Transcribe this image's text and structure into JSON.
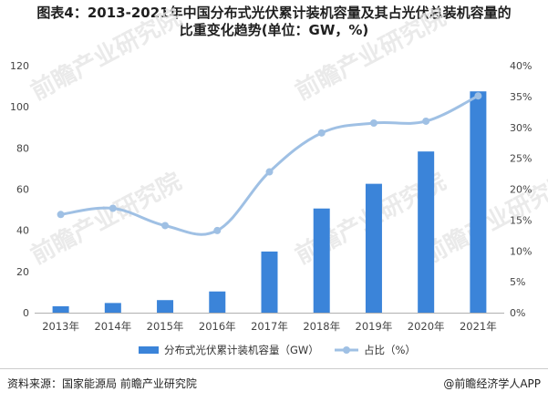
{
  "title_line1": "图表4：2013-2021年中国分布式光伏累计装机容量及其占光伏总装机容量的",
  "title_line2": "比重变化趋势(单位：GW，%)",
  "source": "资料来源：国家能源局 前瞻产业研究院",
  "brand": "@前瞻经济学人APP",
  "watermark_text": "前瞻产业研究院",
  "colors": {
    "bar": "#3b84d9",
    "line": "#9fc0e4",
    "axis": "#b0b0b0",
    "tick_text": "#444444",
    "watermark": "#e6e6e6"
  },
  "chart_data": {
    "type": "bar",
    "categories": [
      "2013年",
      "2014年",
      "2015年",
      "2016年",
      "2017年",
      "2018年",
      "2019年",
      "2020年",
      "2021年"
    ],
    "series": [
      {
        "name": "分布式光伏累计装机容量（GW）",
        "type": "bar",
        "axis": "left",
        "values": [
          3.1,
          4.7,
          6.1,
          10.3,
          29.7,
          50.6,
          62.6,
          78.3,
          107.5
        ]
      },
      {
        "name": "占比（%）",
        "type": "line",
        "axis": "right",
        "values": [
          15.9,
          16.9,
          14.1,
          13.3,
          22.8,
          29.1,
          30.7,
          31.0,
          35.1
        ]
      }
    ],
    "left_axis": {
      "min": 0,
      "max": 120,
      "ticks": [
        "0",
        "20",
        "40",
        "60",
        "80",
        "100",
        "120"
      ]
    },
    "right_axis": {
      "min": 0,
      "max": 40,
      "ticks": [
        "0%",
        "5%",
        "10%",
        "15%",
        "20%",
        "25%",
        "30%",
        "35%",
        "40%"
      ]
    },
    "grid": false,
    "legend_position": "bottom"
  }
}
